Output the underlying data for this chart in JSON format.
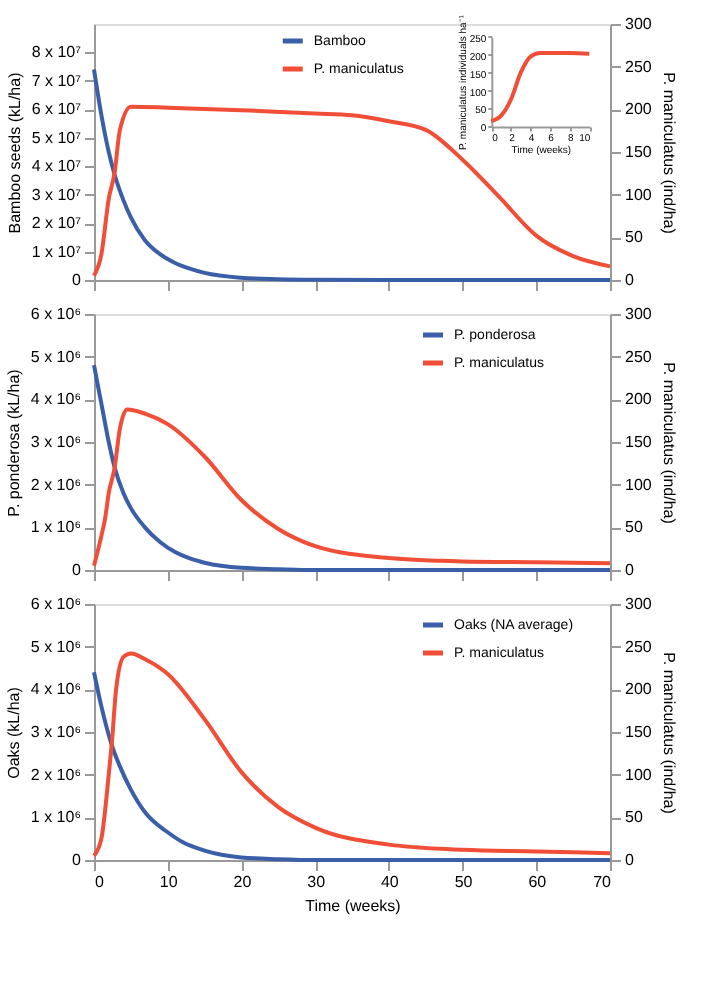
{
  "chart_data": [
    {
      "type": "line",
      "ylabel": "Bamboo seeds (kL/ha)",
      "y2label": "P. maniculatus (ind/ha)",
      "xlim": [
        0,
        70
      ],
      "xticks": [
        0,
        10,
        20,
        30,
        40,
        50,
        60,
        70
      ],
      "ylim": [
        0,
        90000000
      ],
      "yticks": [
        0,
        {
          "value": 10000000,
          "label": "1 x 10⁷"
        },
        {
          "value": 20000000,
          "label": "2 x 10⁷"
        },
        {
          "value": 30000000,
          "label": "3 x 10⁷"
        },
        {
          "value": 40000000,
          "label": "4 x 10⁷"
        },
        {
          "value": 50000000,
          "label": "5 x 10⁷"
        },
        {
          "value": 60000000,
          "label": "6 x 10⁷"
        },
        {
          "value": 70000000,
          "label": "7 x 10⁷"
        },
        {
          "value": 80000000,
          "label": "8 x 10⁷"
        }
      ],
      "y2lim": [
        0,
        300
      ],
      "y2ticks": [
        0,
        50,
        100,
        150,
        200,
        250,
        300
      ],
      "tick_labels": "y",
      "legend": "top",
      "grid": false,
      "series": [
        {
          "name": "Bamboo",
          "color": "#3a5fa8",
          "x": [
            0,
            1,
            2,
            2.8,
            4,
            5,
            6.9,
            9,
            11,
            13,
            15,
            20,
            25,
            30,
            40,
            50,
            60,
            70
          ],
          "values": [
            74000000,
            58000000,
            45000000,
            37000000,
            28000000,
            22000000,
            14000000,
            9000000,
            6000000,
            4000000,
            2500000,
            800000,
            300000,
            100000,
            0,
            0,
            0,
            0
          ]
        },
        {
          "name": "P. maniculatus",
          "color": "#f04e37",
          "axis": "y2",
          "x": [
            0,
            1,
            2,
            2.8,
            3.5,
            5,
            10,
            20,
            30,
            35,
            40,
            45,
            50,
            55,
            60,
            65,
            70
          ],
          "values": [
            5,
            30,
            95,
            126,
            175,
            203,
            202,
            199,
            195,
            193,
            186,
            176,
            141,
            97,
            52,
            28,
            16
          ]
        }
      ]
    },
    {
      "type": "line",
      "xlabel": "Time (weeks)",
      "ylabel": "P. maniculatus individuals ha⁻¹",
      "xlim": [
        0,
        10
      ],
      "xticks": [
        0,
        2,
        4,
        6,
        8,
        10
      ],
      "ylim": [
        0,
        250
      ],
      "yticks": [
        0,
        50,
        100,
        150,
        200,
        250
      ],
      "grid": false,
      "series": [
        {
          "color": "#f04e37",
          "x": [
            0,
            1,
            2,
            3,
            4,
            5,
            6,
            8,
            10
          ],
          "values": [
            15,
            30,
            75,
            150,
            195,
            205,
            205,
            205,
            203
          ]
        }
      ]
    },
    {
      "type": "line",
      "ylabel": "P. ponderosa (kL/ha)",
      "y2label": "P. maniculatus (ind/ha)",
      "xlim": [
        0,
        70
      ],
      "xticks": [
        0,
        10,
        20,
        30,
        40,
        50,
        60,
        70
      ],
      "ylim": [
        0,
        6000000
      ],
      "yticks": [
        0,
        {
          "value": 1000000,
          "label": "1 x 10⁶"
        },
        {
          "value": 2000000,
          "label": "2 x 10⁶"
        },
        {
          "value": 3000000,
          "label": "3 x 10⁶"
        },
        {
          "value": 4000000,
          "label": "4 x 10⁶"
        },
        {
          "value": 5000000,
          "label": "5 x 10⁶"
        },
        {
          "value": 6000000,
          "label": "6 x 10⁶"
        }
      ],
      "y2lim": [
        0,
        300
      ],
      "y2ticks": [
        0,
        50,
        100,
        150,
        200,
        250,
        300
      ],
      "tick_labels": "y",
      "legend": "top right",
      "grid": false,
      "series": [
        {
          "name": "P. ponderosa",
          "color": "#3a5fa8",
          "x": [
            0,
            1,
            2,
            2.8,
            4,
            5,
            6.9,
            9,
            11,
            13,
            15,
            20,
            25,
            30,
            40,
            50,
            60,
            70
          ],
          "values": [
            4800000,
            3900000,
            3000000,
            2400000,
            1800000,
            1450000,
            1000000,
            650000,
            420000,
            270000,
            170000,
            50000,
            20000,
            0,
            0,
            0,
            0,
            0
          ]
        },
        {
          "name": "P. maniculatus",
          "color": "#f04e37",
          "axis": "y2",
          "x": [
            0,
            1,
            1.5,
            2,
            2.8,
            3.5,
            4.5,
            7,
            10,
            15,
            20,
            25,
            30,
            40,
            50,
            60,
            70
          ],
          "values": [
            5,
            40,
            60,
            90,
            120,
            165,
            188,
            183,
            171,
            133,
            82,
            48,
            28,
            14,
            10,
            9,
            8
          ]
        }
      ]
    },
    {
      "type": "line",
      "xlabel": "Time (weeks)",
      "ylabel": "Oaks (kL/ha)",
      "y2label": "P. maniculatus (ind/ha)",
      "xlim": [
        0,
        70
      ],
      "xticks": [
        0,
        10,
        20,
        30,
        40,
        50,
        60,
        70
      ],
      "ylim": [
        0,
        6000000
      ],
      "yticks": [
        0,
        {
          "value": 1000000,
          "label": "1 x 10⁶"
        },
        {
          "value": 2000000,
          "label": "2 x 10⁶"
        },
        {
          "value": 3000000,
          "label": "3 x 10⁶"
        },
        {
          "value": 4000000,
          "label": "4 x 10⁶"
        },
        {
          "value": 5000000,
          "label": "5 x 10⁶"
        },
        {
          "value": 6000000,
          "label": "6 x 10⁶"
        }
      ],
      "y2lim": [
        0,
        300
      ],
      "y2ticks": [
        0,
        50,
        100,
        150,
        200,
        250,
        300
      ],
      "legend": "top right",
      "grid": false,
      "series": [
        {
          "name": "Oaks (NA average)",
          "color": "#3a5fa8",
          "x": [
            0,
            1,
            2.4,
            3.5,
            5,
            7,
            10,
            12,
            15,
            20,
            25,
            30,
            40,
            50,
            60,
            70
          ],
          "values": [
            4400000,
            3600000,
            2700000,
            2200000,
            1650000,
            1100000,
            650000,
            420000,
            220000,
            60000,
            20000,
            0,
            0,
            0,
            0,
            0
          ]
        },
        {
          "name": "P. maniculatus",
          "color": "#f04e37",
          "axis": "y2",
          "x": [
            0,
            1,
            2,
            2.4,
            3,
            4,
            5,
            7,
            10,
            15,
            20,
            25,
            30,
            40,
            50,
            60,
            70
          ],
          "values": [
            5,
            25,
            100,
            135,
            200,
            238,
            242,
            235,
            218,
            165,
            103,
            62,
            38,
            18,
            12,
            10,
            8
          ]
        }
      ]
    }
  ]
}
